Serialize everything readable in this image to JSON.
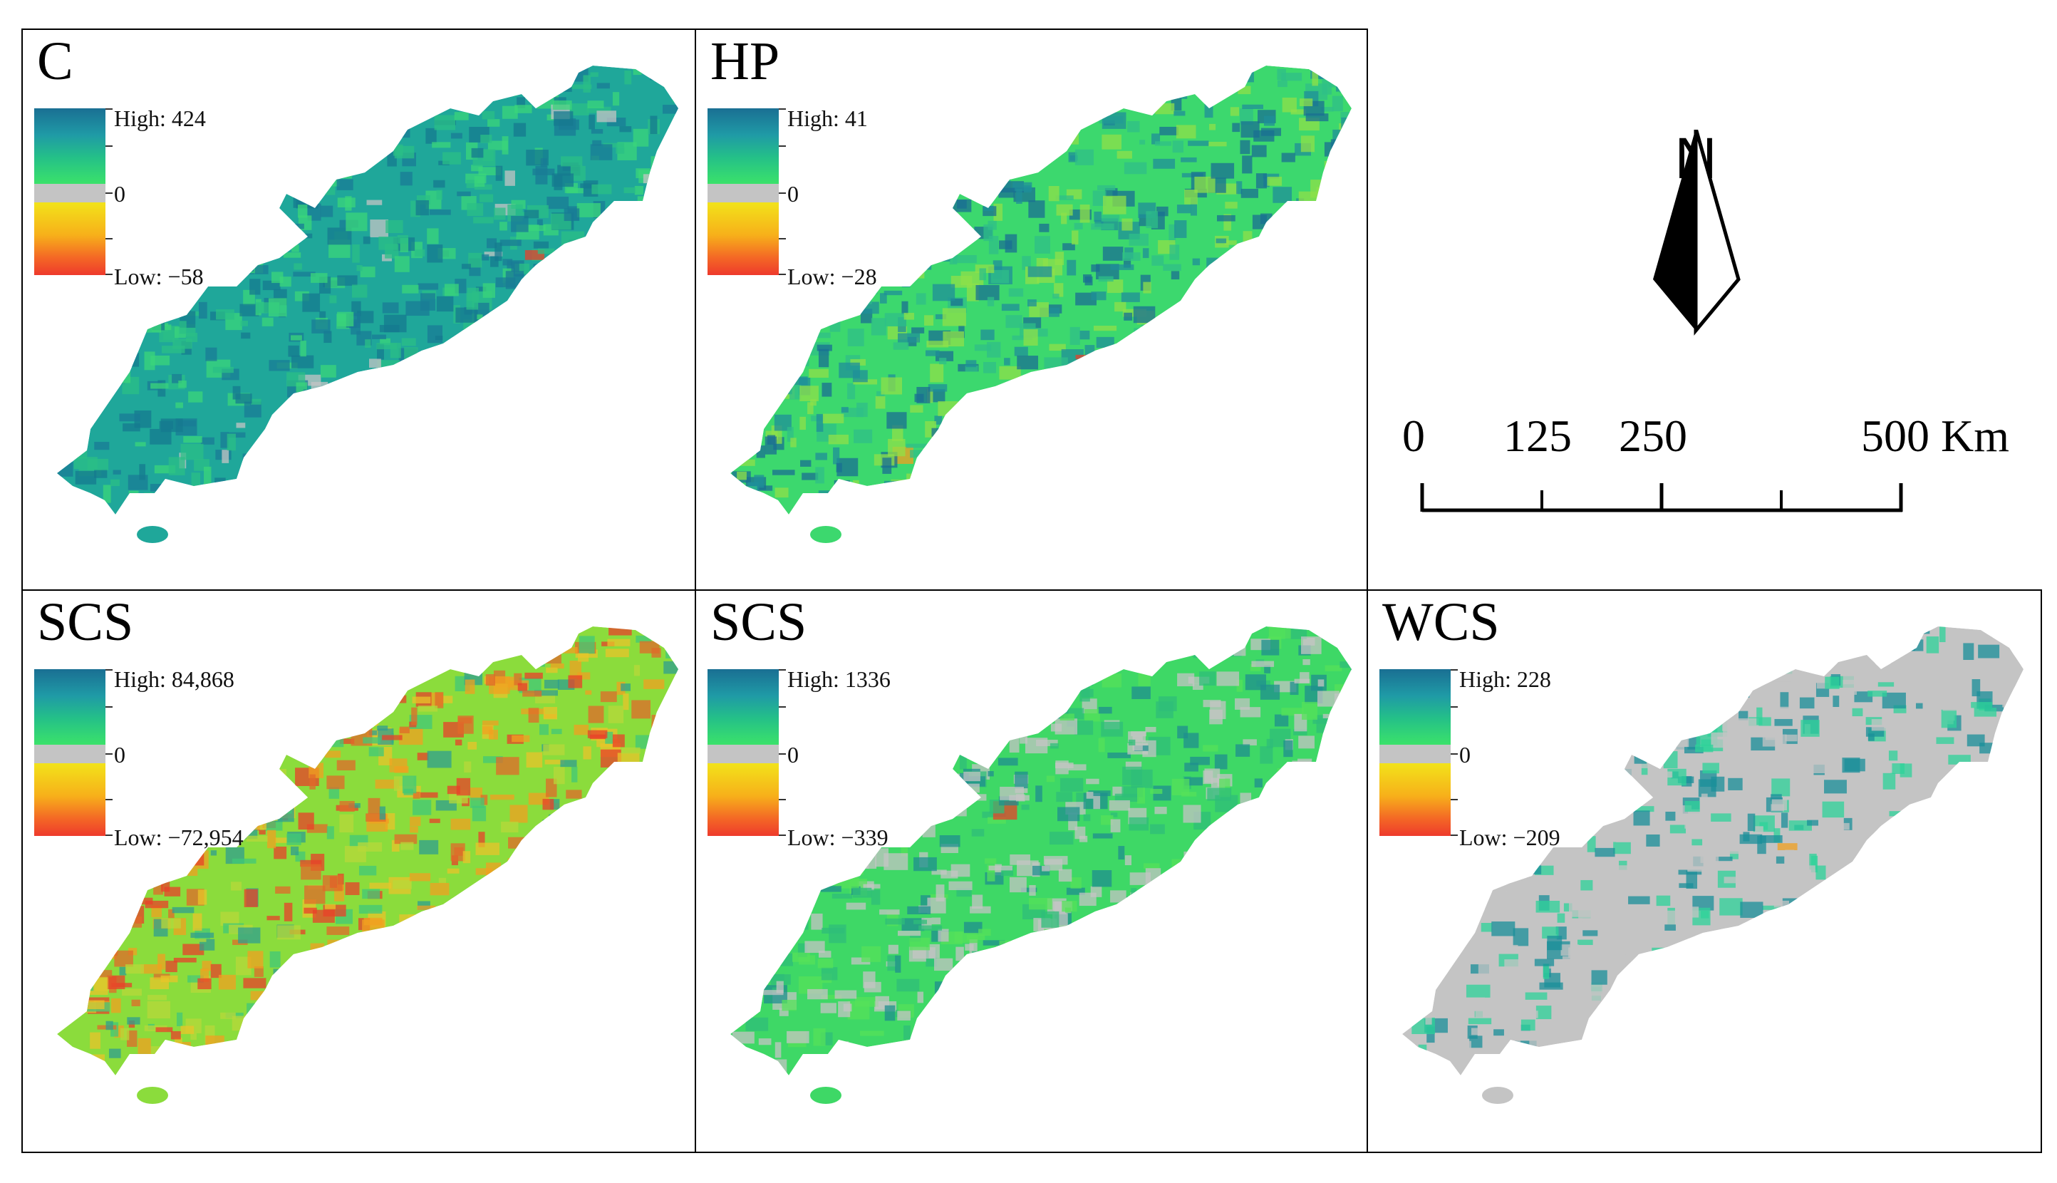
{
  "panels": [
    {
      "id": "c",
      "title": "C",
      "legend": {
        "high": "High: 424",
        "zero": "0",
        "low": "Low: −58"
      },
      "theme": "teal"
    },
    {
      "id": "hp",
      "title": "HP",
      "legend": {
        "high": "High: 41",
        "zero": "0",
        "low": "Low: −28"
      },
      "theme": "mixed"
    },
    {
      "id": "scs1",
      "title": "SCS",
      "legend": {
        "high": "High: 84,868",
        "zero": "0",
        "low": "Low: −72,954"
      },
      "theme": "speckle"
    },
    {
      "id": "scs2",
      "title": "SCS",
      "legend": {
        "high": "High: 1336",
        "zero": "0",
        "low": "Low: −339"
      },
      "theme": "greengrey"
    },
    {
      "id": "wcs",
      "title": "WCS",
      "legend": {
        "high": "High: 228",
        "zero": "0",
        "low": "Low: −209"
      },
      "theme": "grey"
    }
  ],
  "north_arrow": {
    "letter": "N"
  },
  "scale_bar": {
    "labels": [
      "0",
      "125",
      "250",
      "500 Km"
    ]
  },
  "colors": {
    "high": "#1a6f93",
    "mid_high": "#24c088",
    "low_pos": "#3be26a",
    "zero": "#c4c4c4",
    "low_neg": "#f2e31a",
    "low": "#ee3a2c"
  }
}
